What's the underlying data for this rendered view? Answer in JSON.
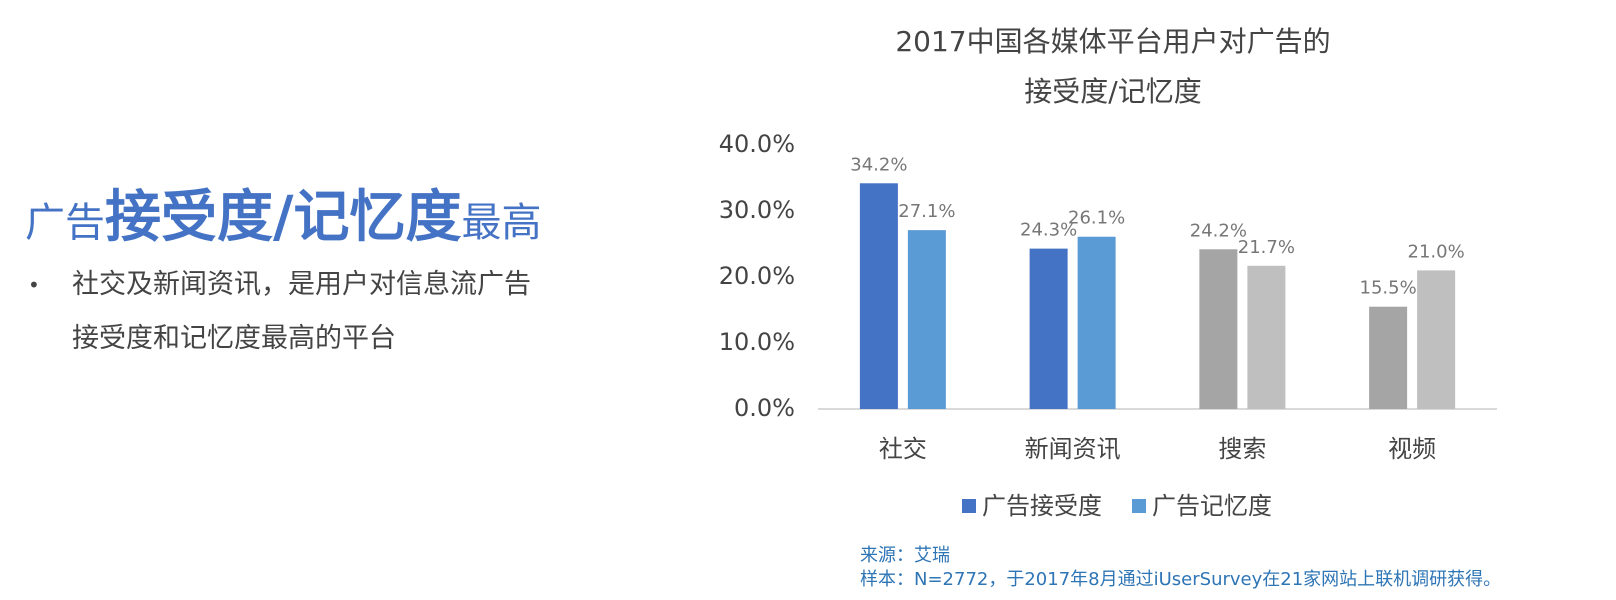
{
  "heading": {
    "prefix": "广告",
    "emphasis": "接受度/记忆度",
    "suffix": "最高"
  },
  "bullet": "社交及新闻资讯，是用户对信息流广告接受度和记忆度最高的平台",
  "chart_data": {
    "type": "bar",
    "title": [
      "2017中国各媒体平台用户对广告的",
      "接受度/记忆度"
    ],
    "categories": [
      "社交",
      "新闻资讯",
      "搜索",
      "视频"
    ],
    "series": [
      {
        "name": "广告接受度",
        "color": "#4472c4",
        "point_colors": [
          "#4472c4",
          "#4472c4",
          "#a5a5a5",
          "#a5a5a5"
        ],
        "values": [
          34.2,
          24.3,
          24.2,
          15.5
        ],
        "value_labels": [
          "34.2%",
          "24.3%",
          "24.2%",
          "15.5%"
        ]
      },
      {
        "name": "广告记忆度",
        "color": "#5b9bd5",
        "point_colors": [
          "#5b9bd5",
          "#5b9bd5",
          "#bfbfbf",
          "#bfbfbf"
        ],
        "values": [
          27.1,
          26.1,
          21.7,
          21.0
        ],
        "value_labels": [
          "27.1%",
          "26.1%",
          "21.7%",
          "21.0%"
        ]
      }
    ],
    "ylim": [
      0,
      40
    ],
    "yticks": [
      {
        "value": 0,
        "label": "0.0%"
      },
      {
        "value": 10,
        "label": "10.0%"
      },
      {
        "value": 20,
        "label": "20.0%"
      },
      {
        "value": 30,
        "label": "30.0%"
      },
      {
        "value": 40,
        "label": "40.0%"
      }
    ],
    "grid": false,
    "legend": "bottom"
  },
  "source": {
    "line1": "来源：艾瑞",
    "line2": "样本：N=2772，于2017年8月通过iUserSurvey在21家网站上联机调研获得。"
  }
}
